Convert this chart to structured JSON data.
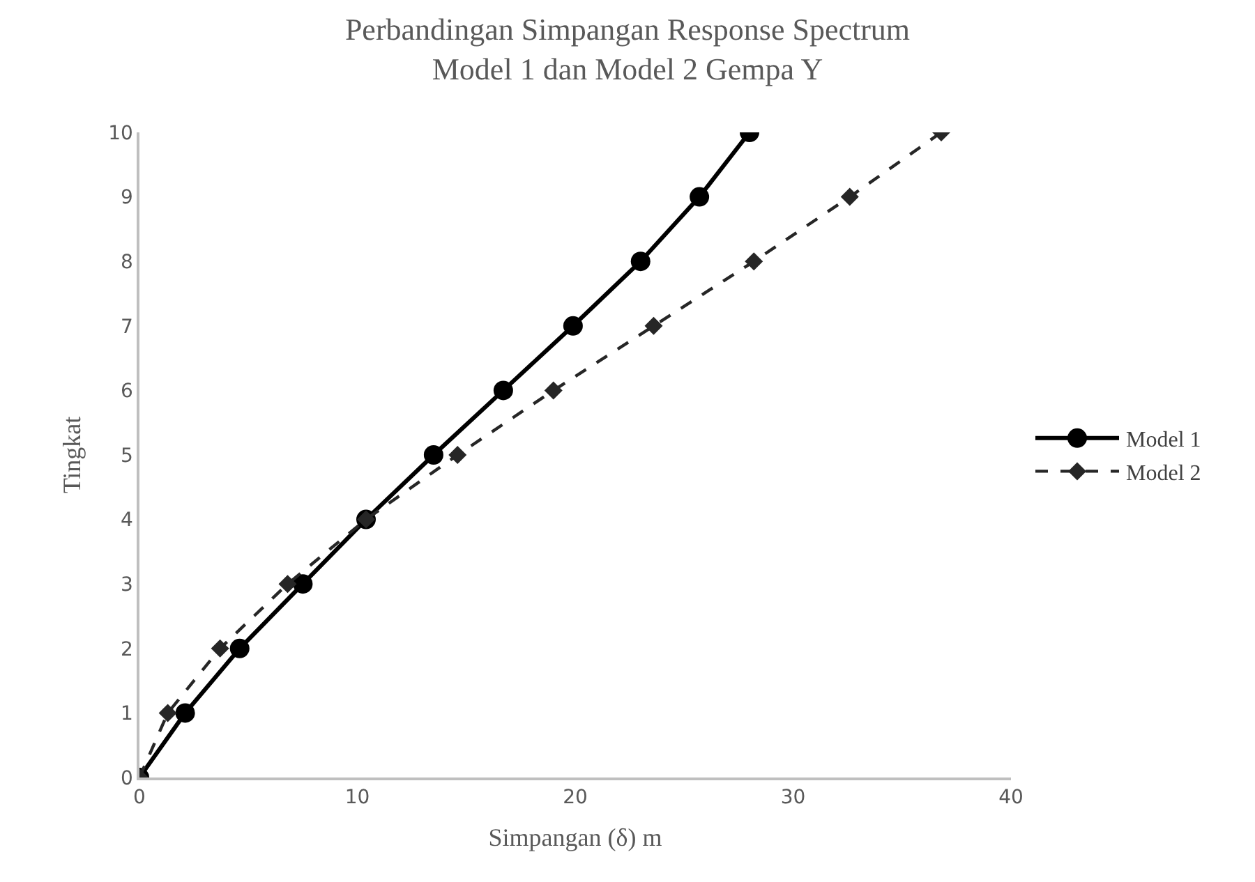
{
  "chart_data": {
    "type": "line",
    "title": "Perbandingan Simpangan Response Spectrum\nModel 1 dan Model 2 Gempa Y",
    "xlabel": "Simpangan (δ) m",
    "ylabel": "Tingkat",
    "xlim": [
      0,
      40
    ],
    "xticks": [
      0,
      10,
      20,
      30,
      40
    ],
    "ylim": [
      0,
      10
    ],
    "yticks": [
      0,
      1,
      2,
      3,
      4,
      5,
      6,
      7,
      8,
      9,
      10
    ],
    "grid": false,
    "legend": "right",
    "series": [
      {
        "name": "Model 1",
        "color": "#000000",
        "marker": "circle",
        "line_style": "solid",
        "x": [
          0,
          2.1,
          4.6,
          7.5,
          10.4,
          13.5,
          16.7,
          19.9,
          23.0,
          25.7,
          28.0
        ],
        "values": [
          0,
          1,
          2,
          3,
          4,
          5,
          6,
          7,
          8,
          9,
          10
        ]
      },
      {
        "name": "Model 2",
        "color": "#262626",
        "marker": "diamond",
        "line_style": "dashed",
        "x": [
          0,
          1.3,
          3.7,
          6.8,
          10.4,
          14.6,
          19.0,
          23.6,
          28.2,
          32.6,
          36.8
        ],
        "values": [
          0,
          1,
          2,
          3,
          4,
          5,
          6,
          7,
          8,
          9,
          10
        ]
      }
    ]
  }
}
